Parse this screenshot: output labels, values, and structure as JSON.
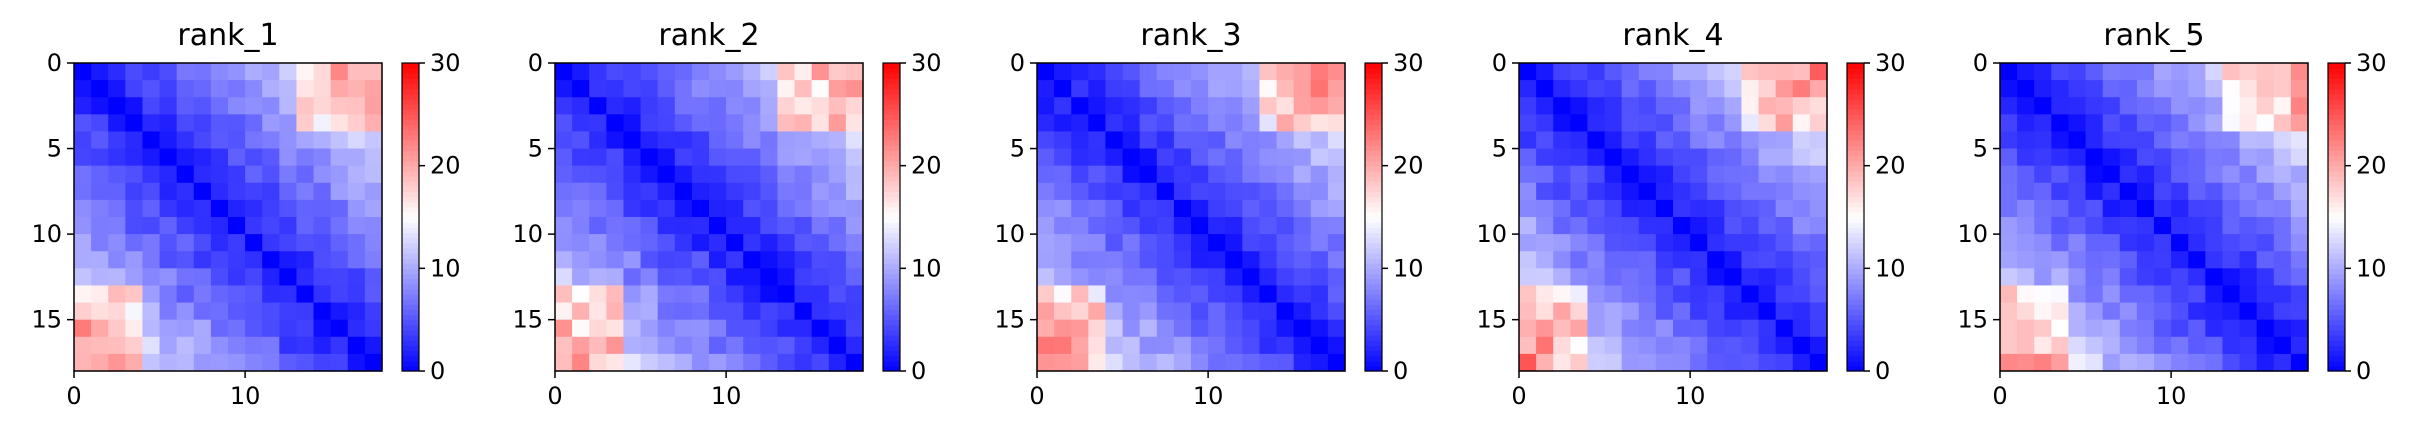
{
  "chart_data": [
    {
      "type": "heatmap",
      "title": "rank_1",
      "size": 18,
      "x_ticks": [
        "0",
        "10"
      ],
      "y_ticks": [
        "0",
        "5",
        "10",
        "15"
      ],
      "colorbar": {
        "colormap": "bwr",
        "vmin": 0,
        "vmax": 30,
        "ticks": [
          "0",
          "10",
          "20",
          "30"
        ]
      },
      "seed": 11
    },
    {
      "type": "heatmap",
      "title": "rank_2",
      "size": 18,
      "x_ticks": [
        "0",
        "10"
      ],
      "y_ticks": [
        "0",
        "5",
        "10",
        "15"
      ],
      "colorbar": {
        "colormap": "bwr",
        "vmin": 0,
        "vmax": 30,
        "ticks": [
          "0",
          "10",
          "20",
          "30"
        ]
      },
      "seed": 23
    },
    {
      "type": "heatmap",
      "title": "rank_3",
      "size": 18,
      "x_ticks": [
        "0",
        "10"
      ],
      "y_ticks": [
        "0",
        "5",
        "10",
        "15"
      ],
      "colorbar": {
        "colormap": "bwr",
        "vmin": 0,
        "vmax": 30,
        "ticks": [
          "0",
          "10",
          "20",
          "30"
        ]
      },
      "seed": 37
    },
    {
      "type": "heatmap",
      "title": "rank_4",
      "size": 18,
      "x_ticks": [
        "0",
        "10"
      ],
      "y_ticks": [
        "0",
        "5",
        "10",
        "15"
      ],
      "colorbar": {
        "colormap": "bwr",
        "vmin": 0,
        "vmax": 30,
        "ticks": [
          "0",
          "10",
          "20",
          "30"
        ]
      },
      "seed": 41
    },
    {
      "type": "heatmap",
      "title": "rank_5",
      "size": 18,
      "x_ticks": [
        "0",
        "10"
      ],
      "y_ticks": [
        "0",
        "5",
        "10",
        "15"
      ],
      "colorbar": {
        "colormap": "bwr",
        "vmin": 0,
        "vmax": 30,
        "ticks": [
          "0",
          "10",
          "20",
          "30"
        ]
      },
      "seed": 53
    }
  ]
}
